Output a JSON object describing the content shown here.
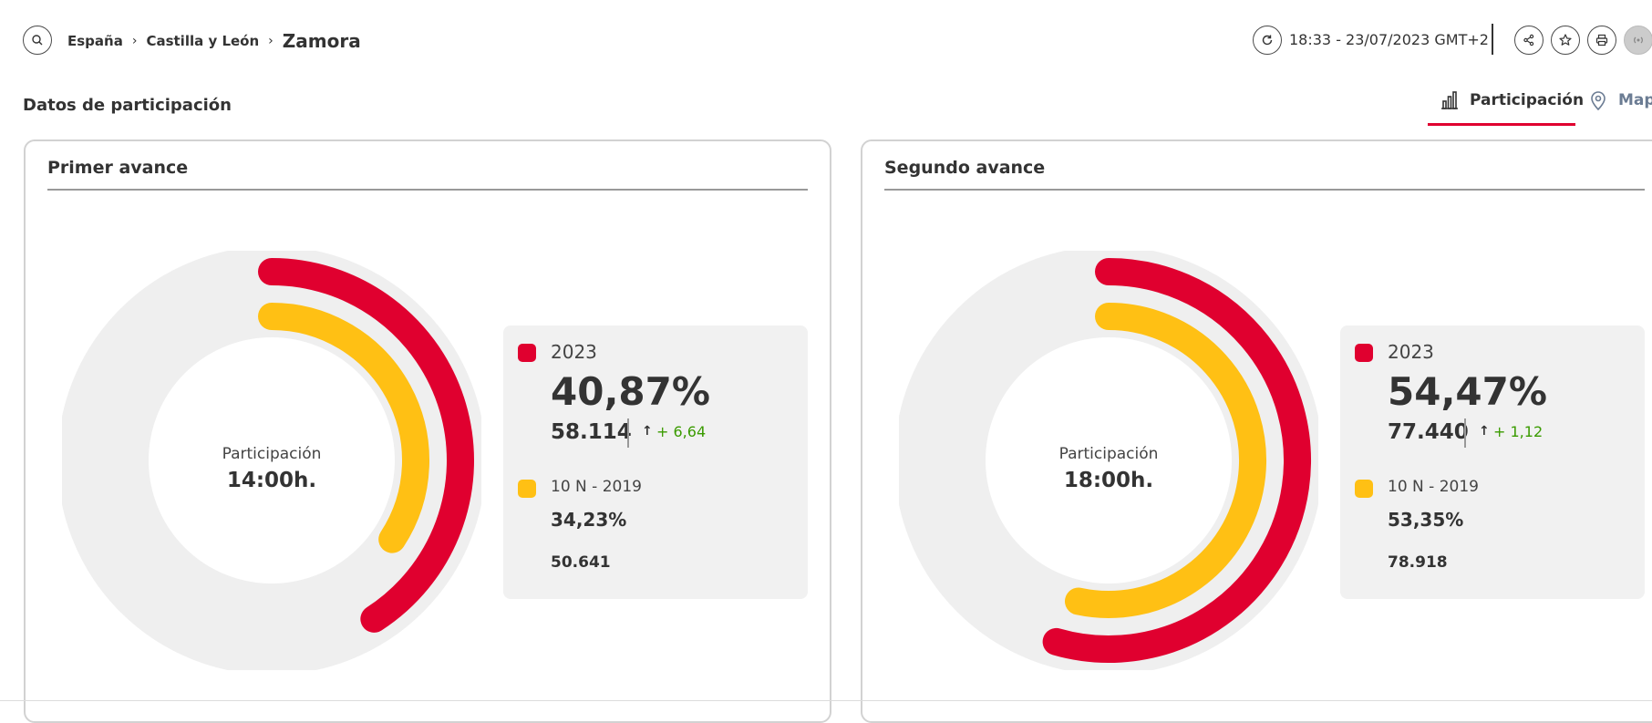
{
  "breadcrumb": {
    "items": [
      "España",
      "Castilla y León"
    ],
    "current": "Zamora"
  },
  "header": {
    "timestamp": "18:33 - 23/07/2023 GMT+2"
  },
  "icons": {
    "search": "search-icon",
    "refresh": "refresh-icon",
    "share": "share-icon",
    "favorite": "star-icon",
    "print": "print-icon",
    "live": "broadcast-icon",
    "tab_participacion": "bar-chart-icon",
    "tab_mapa": "map-pin-icon"
  },
  "section": {
    "title": "Datos de participación"
  },
  "tabs": [
    {
      "label": "Participación",
      "active": true
    },
    {
      "label": "Mapa",
      "active": false
    }
  ],
  "colors": {
    "current": "#e0002f",
    "previous": "#ffc014",
    "track": "#efefef",
    "change_positive": "#3a9b00"
  },
  "cards": [
    {
      "title": "Primer avance",
      "center_label": "Participación",
      "center_time": "14:00h.",
      "current": {
        "year": "2023",
        "percent": "40,87%",
        "votes": "58.114",
        "change": "+ 6,64",
        "value": 40.87
      },
      "previous": {
        "label": "10 N - 2019",
        "percent": "34,23%",
        "votes": "50.641",
        "value": 34.23
      }
    },
    {
      "title": "Segundo avance",
      "center_label": "Participación",
      "center_time": "18:00h.",
      "current": {
        "year": "2023",
        "percent": "54,47%",
        "votes": "77.440",
        "change": "+ 1,12",
        "value": 54.47
      },
      "previous": {
        "label": "10 N - 2019",
        "percent": "53,35%",
        "votes": "78.918",
        "value": 53.35
      }
    }
  ]
}
